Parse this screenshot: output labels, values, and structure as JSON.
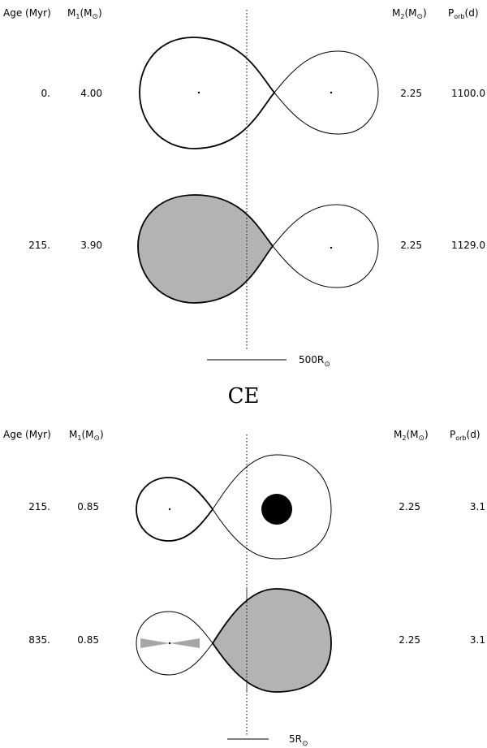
{
  "top_panel": {
    "headers": {
      "age": "Age (Myr)",
      "m1": "M",
      "m1_sub": "1",
      "m1_unit": "(M",
      "m2": "M",
      "m2_sub": "2",
      "m2_unit": "(M",
      "porb": "P",
      "porb_sub": "orb",
      "porb_unit": "(d)"
    },
    "rows": [
      {
        "age": "0.",
        "m1": "4.00",
        "m2": "2.25",
        "porb": "1100.0"
      },
      {
        "age": "215.",
        "m1": "3.90",
        "m2": "2.25",
        "porb": "1129.0"
      }
    ],
    "scale_label": "500R",
    "colors": {
      "filled_lobe": "#b3b3b3"
    }
  },
  "ce_label": "CE",
  "bottom_panel": {
    "headers": {
      "age": "Age (Myr)",
      "m1": "M",
      "m1_sub": "1",
      "m1_unit": "(M",
      "m2": "M",
      "m2_sub": "2",
      "m2_unit": "(M",
      "porb": "P",
      "porb_sub": "orb",
      "porb_unit": "(d)"
    },
    "rows": [
      {
        "age": "215.",
        "m1": "0.85",
        "m2": "2.25",
        "porb": "3.1"
      },
      {
        "age": "835.",
        "m1": "0.85",
        "m2": "2.25",
        "porb": "3.1"
      }
    ],
    "scale_label": "5R",
    "colors": {
      "filled_lobe": "#b3b3b3",
      "star": "#000000",
      "disk": "#a6a6a6"
    }
  }
}
